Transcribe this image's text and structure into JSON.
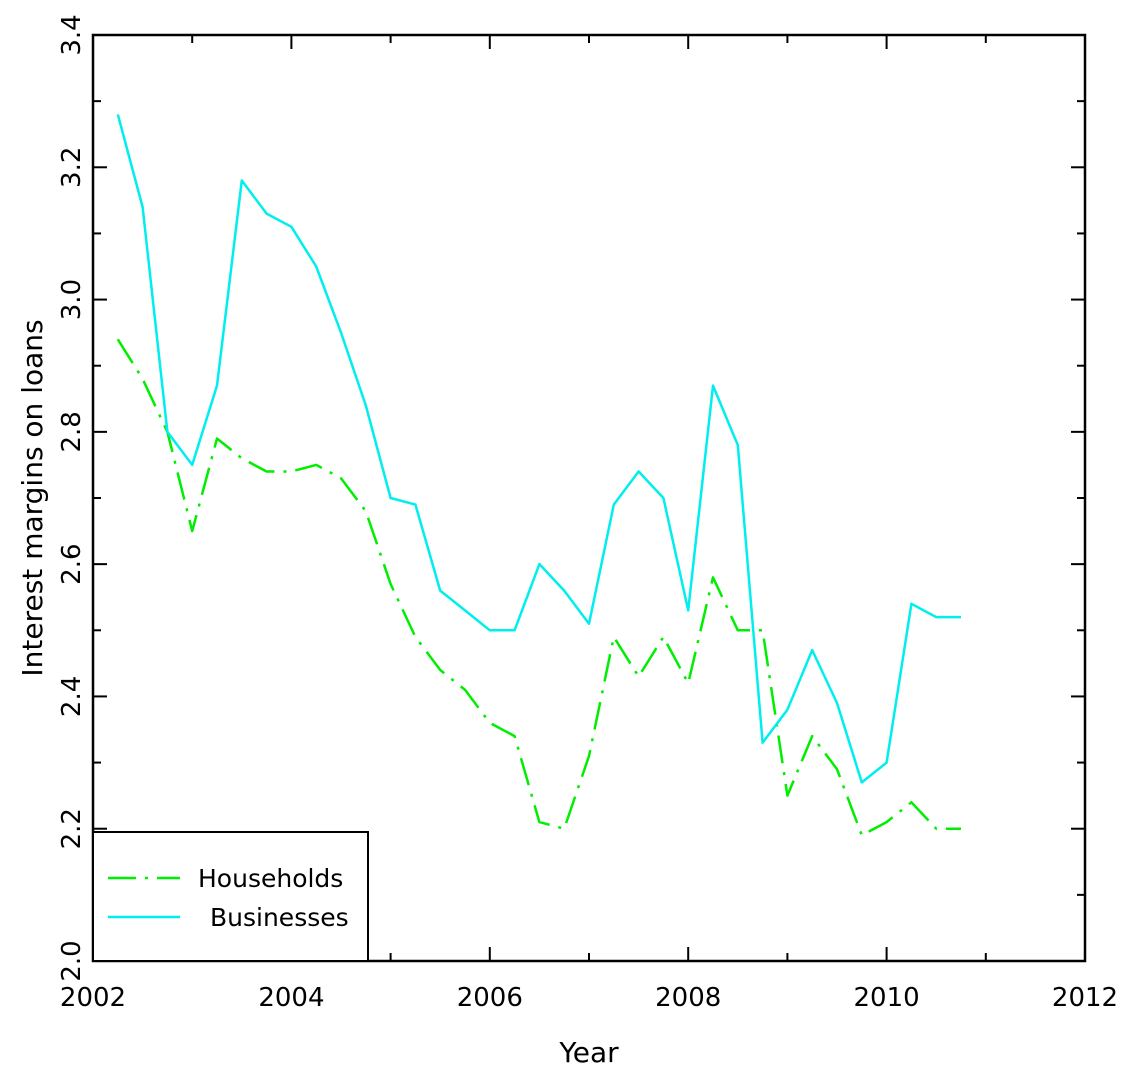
{
  "chart_data": {
    "type": "line",
    "title": "",
    "xlabel": "Year",
    "ylabel": "Interest margins on loans",
    "xlim": [
      2002,
      2012
    ],
    "ylim": [
      2.0,
      3.4
    ],
    "x_ticks": [
      2002,
      2004,
      2006,
      2008,
      2010,
      2012
    ],
    "x_tick_labels": [
      "2002",
      "2004",
      "2006",
      "2008",
      "2010",
      "2012"
    ],
    "y_ticks": [
      2.0,
      2.2,
      2.4,
      2.6,
      2.8,
      3.0,
      3.2,
      3.4
    ],
    "y_tick_labels": [
      "2.0",
      "2.2",
      "2.4",
      "2.6",
      "2.8",
      "3.0",
      "3.2",
      "3.4"
    ],
    "y_minor_step": 0.1,
    "x_minor_step": 1,
    "grid": false,
    "legend_position": "bottom-left",
    "series": [
      {
        "name": "Households",
        "color": "#00ee00",
        "style": "dash-dot",
        "x": [
          2002.25,
          2002.5,
          2002.75,
          2003.0,
          2003.25,
          2003.5,
          2003.75,
          2004.0,
          2004.25,
          2004.5,
          2004.75,
          2005.0,
          2005.25,
          2005.5,
          2005.75,
          2006.0,
          2006.25,
          2006.5,
          2006.75,
          2007.0,
          2007.25,
          2007.5,
          2007.75,
          2008.0,
          2008.25,
          2008.5,
          2008.75,
          2009.0,
          2009.25,
          2009.5,
          2009.75,
          2010.0,
          2010.25,
          2010.5,
          2010.75
        ],
        "values": [
          2.94,
          2.88,
          2.8,
          2.65,
          2.79,
          2.76,
          2.74,
          2.74,
          2.75,
          2.73,
          2.68,
          2.57,
          2.49,
          2.44,
          2.41,
          2.36,
          2.34,
          2.21,
          2.2,
          2.31,
          2.49,
          2.43,
          2.49,
          2.42,
          2.58,
          2.5,
          2.5,
          2.25,
          2.34,
          2.29,
          2.19,
          2.21,
          2.24,
          2.2,
          2.2
        ]
      },
      {
        "name": "Businesses",
        "color": "#00eeee",
        "style": "solid",
        "x": [
          2002.25,
          2002.5,
          2002.75,
          2003.0,
          2003.25,
          2003.5,
          2003.75,
          2004.0,
          2004.25,
          2004.5,
          2004.75,
          2005.0,
          2005.25,
          2005.5,
          2005.75,
          2006.0,
          2006.25,
          2006.5,
          2006.75,
          2007.0,
          2007.25,
          2007.5,
          2007.75,
          2008.0,
          2008.25,
          2008.5,
          2008.75,
          2009.0,
          2009.25,
          2009.5,
          2009.75,
          2010.0,
          2010.25,
          2010.5,
          2010.75
        ],
        "values": [
          3.28,
          3.14,
          2.8,
          2.75,
          2.87,
          3.18,
          3.13,
          3.11,
          3.05,
          2.95,
          2.84,
          2.7,
          2.69,
          2.56,
          2.53,
          2.5,
          2.5,
          2.6,
          2.56,
          2.51,
          2.69,
          2.74,
          2.7,
          2.53,
          2.87,
          2.78,
          2.33,
          2.38,
          2.47,
          2.39,
          2.27,
          2.3,
          2.54,
          2.52,
          2.52
        ]
      }
    ]
  }
}
